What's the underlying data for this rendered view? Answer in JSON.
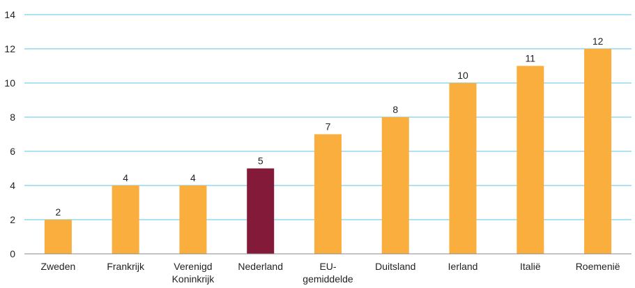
{
  "chart_data": {
    "type": "bar",
    "title": "",
    "xlabel": "",
    "ylabel": "",
    "ylim": [
      0,
      14
    ],
    "yticks": [
      0,
      2,
      4,
      6,
      8,
      10,
      12,
      14
    ],
    "grid": true,
    "categories": [
      [
        "Zweden"
      ],
      [
        "Frankrijk"
      ],
      [
        "Verenigd",
        "Koninkrijk"
      ],
      [
        "Nederland"
      ],
      [
        "EU-",
        "gemiddelde"
      ],
      [
        "Duitsland"
      ],
      [
        "Ierland"
      ],
      [
        "Italië"
      ],
      [
        "Roemenië"
      ]
    ],
    "values": [
      2,
      4,
      4,
      5,
      7,
      8,
      10,
      11,
      12
    ],
    "data_labels": [
      "2",
      "4",
      "4",
      "5",
      "7",
      "8",
      "10",
      "11",
      "12"
    ],
    "highlight_index": 3,
    "colors": {
      "bar": "#F9AE3E",
      "highlight": "#841A39",
      "grid": "#5BC4E5",
      "axis": "#888888"
    }
  }
}
